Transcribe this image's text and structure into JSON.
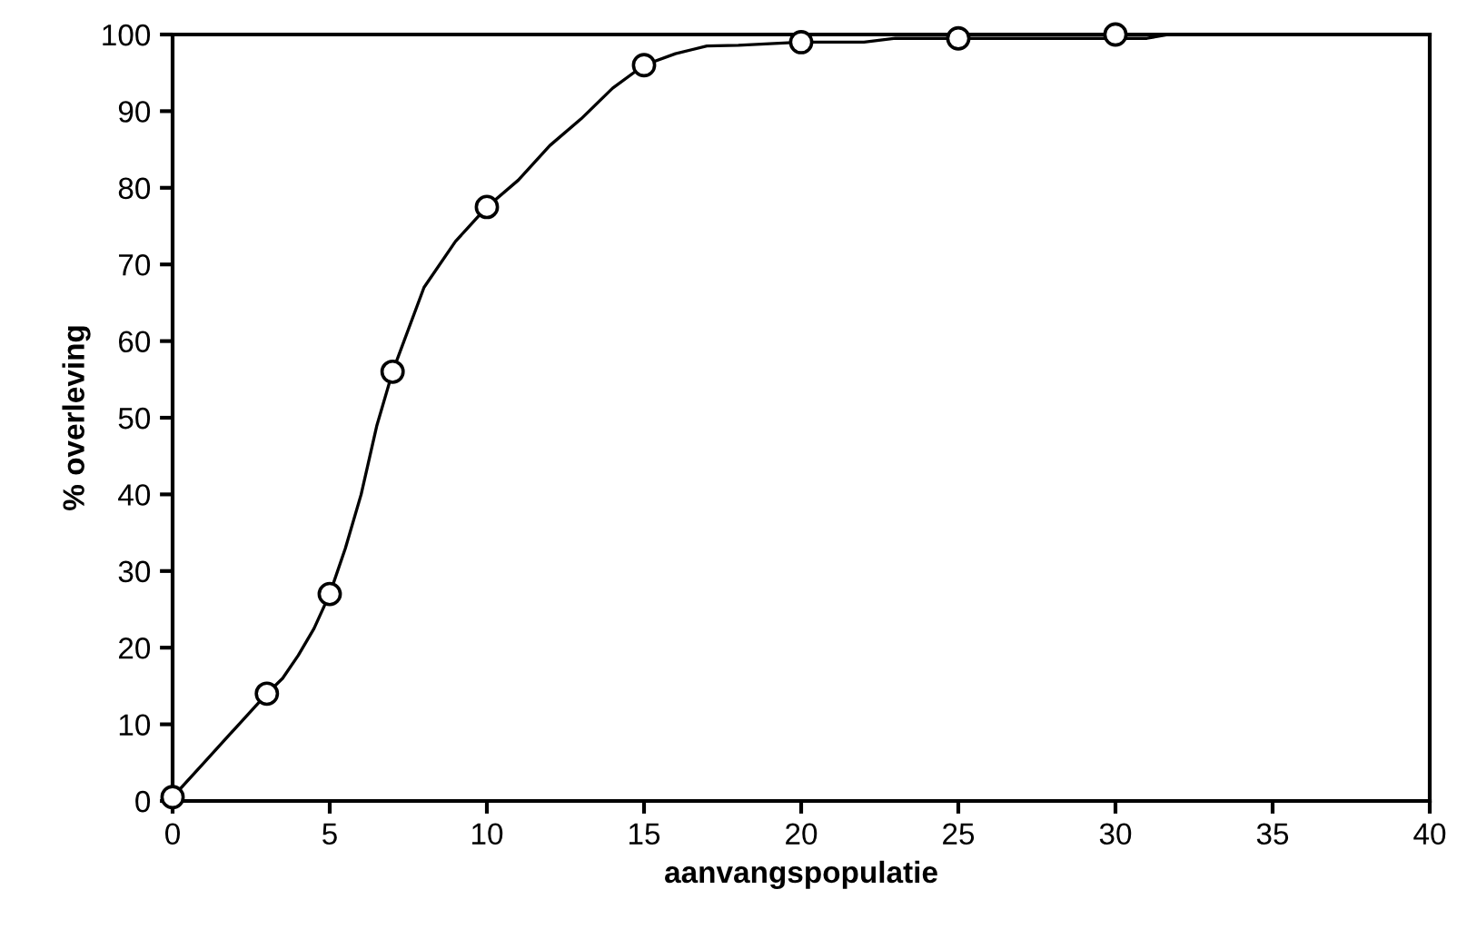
{
  "chart_data": {
    "type": "line",
    "xlabel": "aanvangspopulatie",
    "ylabel": "% overleving",
    "xlim": [
      0,
      40
    ],
    "xticks": [
      0,
      5,
      10,
      15,
      20,
      25,
      30,
      35,
      40
    ],
    "ylim": [
      0,
      100
    ],
    "yticks": [
      0,
      10,
      20,
      30,
      40,
      50,
      60,
      70,
      80,
      90,
      100
    ],
    "grid": false,
    "legend": false,
    "series": [
      {
        "marker": "none",
        "line_style": "solid",
        "color": "#000000",
        "x": [
          0,
          1,
          2,
          3,
          3.5,
          4,
          4.5,
          5,
          5.5,
          6,
          6.5,
          7,
          8,
          9,
          10,
          11,
          12,
          13,
          14,
          15,
          16,
          17,
          18,
          19,
          20,
          22,
          23,
          25,
          28,
          30,
          31,
          31.7
        ],
        "values": [
          0.5,
          5,
          9.5,
          14,
          16,
          19,
          22.5,
          27,
          33,
          40,
          49,
          56,
          67,
          73,
          77.5,
          81,
          85.5,
          89,
          93,
          96,
          97.5,
          98.5,
          98.6,
          98.8,
          99,
          99,
          99.5,
          99.5,
          99.5,
          99.5,
          99.5,
          100
        ]
      },
      {
        "type": "scatter",
        "marker": "circle",
        "color": "#000000",
        "x": [
          0,
          3,
          5,
          7,
          10,
          15,
          20,
          25,
          30
        ],
        "values": [
          0.5,
          14,
          27,
          56,
          77.5,
          96,
          99,
          99.5,
          100
        ]
      }
    ]
  }
}
